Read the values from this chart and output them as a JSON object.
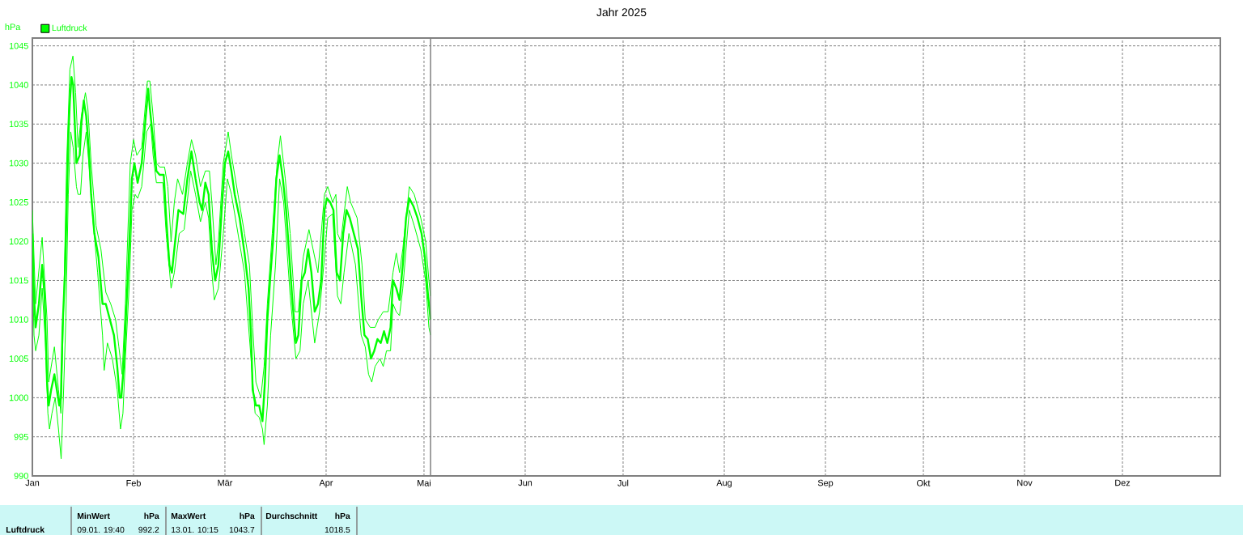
{
  "chart_data": {
    "type": "line",
    "title": "Jahr 2025",
    "ylabel": "hPa",
    "xlim": [
      "2025-01-01",
      "2025-12-31"
    ],
    "ylim": [
      990,
      1046
    ],
    "xticks": [
      {
        "value": "2025-01-01",
        "label": "Jan"
      },
      {
        "value": "2025-02-01",
        "label": "Feb"
      },
      {
        "value": "2025-03-01",
        "label": "Mär"
      },
      {
        "value": "2025-04-01",
        "label": "Apr"
      },
      {
        "value": "2025-05-01",
        "label": "Mai"
      },
      {
        "value": "2025-06-01",
        "label": "Jun"
      },
      {
        "value": "2025-07-01",
        "label": "Jul"
      },
      {
        "value": "2025-08-01",
        "label": "Aug"
      },
      {
        "value": "2025-09-01",
        "label": "Sep"
      },
      {
        "value": "2025-10-01",
        "label": "Okt"
      },
      {
        "value": "2025-11-01",
        "label": "Nov"
      },
      {
        "value": "2025-12-01",
        "label": "Dez"
      }
    ],
    "yticks": [
      990,
      995,
      1000,
      1005,
      1010,
      1015,
      1020,
      1025,
      1030,
      1035,
      1040,
      1045
    ],
    "grid": true,
    "legend": "top left",
    "ref_lines": [
      {
        "axis": "x",
        "value": "2025-05-03",
        "color": "#808080"
      }
    ],
    "annotations": [
      "Luftdruck",
      "MinWert",
      "hPa",
      "09.01. 19:40",
      "992.2",
      "MaxWert",
      "hPa",
      "13.01. 10:15",
      "1043.7",
      "Durchschnitt",
      "hPa",
      "1018.5"
    ],
    "series": [
      {
        "name": "Luftdruck",
        "color": "#00ff00",
        "x": [
          "2025-01-01",
          "2025-01-01T12:00",
          "2025-01-02",
          "2025-01-03",
          "2025-01-04",
          "2025-01-04T18:00",
          "2025-01-05T12:00",
          "2025-01-06",
          "2025-01-06T18:00",
          "2025-01-07T18:00",
          "2025-01-08T12:00",
          "2025-01-09T06:00",
          "2025-01-09T18:00",
          "2025-01-10T06:00",
          "2025-01-11",
          "2025-01-11T12:00",
          "2025-01-12",
          "2025-01-12T12:00",
          "2025-01-13",
          "2025-01-13T12:00",
          "2025-01-14",
          "2025-01-14T12:00",
          "2025-01-15T12:00",
          "2025-01-16",
          "2025-01-16T18:00",
          "2025-01-17T12:00",
          "2025-01-18T06:00",
          "2025-01-19",
          "2025-01-20",
          "2025-01-21T06:00",
          "2025-01-22T12:00",
          "2025-01-23T12:00",
          "2025-01-24T18:00",
          "2025-01-26",
          "2025-01-27",
          "2025-01-27T18:00",
          "2025-01-28T06:00",
          "2025-01-29",
          "2025-01-29T18:00",
          "2025-01-30T18:00",
          "2025-01-31T12:00",
          "2025-02-01T06:00",
          "2025-02-02T06:00",
          "2025-02-03T12:00",
          "2025-02-04T18:00",
          "2025-02-05T12:00",
          "2025-02-06",
          "2025-02-07",
          "2025-02-08",
          "2025-02-09",
          "2025-02-10T06:00",
          "2025-02-11",
          "2025-02-12",
          "2025-02-12T18:00",
          "2025-02-13T18:00",
          "2025-02-14T18:00",
          "2025-02-16T06:00",
          "2025-02-17T12:00",
          "2025-02-18T18:00",
          "2025-02-20",
          "2025-02-21T06:00",
          "2025-02-22",
          "2025-02-23",
          "2025-02-24",
          "2025-02-25",
          "2025-02-26",
          "2025-02-27",
          "2025-02-28",
          "2025-03-01",
          "2025-03-02",
          "2025-03-03",
          "2025-03-04",
          "2025-03-05T12:00",
          "2025-03-07",
          "2025-03-08T06:00",
          "2025-03-09",
          "2025-03-09T12:00",
          "2025-03-10T12:00",
          "2025-03-11T12:00",
          "2025-03-12T12:00",
          "2025-03-13T06:00",
          "2025-03-14",
          "2025-03-15",
          "2025-03-15T18:00",
          "2025-03-16T18:00",
          "2025-03-17T18:00",
          "2025-03-18T18:00",
          "2025-03-19T18:00",
          "2025-03-20T18:00",
          "2025-03-21T18:00",
          "2025-03-22T18:00",
          "2025-03-23T12:00",
          "2025-03-24T12:00",
          "2025-03-25T12:00",
          "2025-03-26T12:00",
          "2025-03-27T12:00",
          "2025-03-28T12:00",
          "2025-03-29T12:00",
          "2025-03-30T12:00",
          "2025-03-31T12:00",
          "2025-04-01T06:00",
          "2025-04-02T06:00",
          "2025-04-03T06:00",
          "2025-04-04T06:00",
          "2025-04-05T06:00",
          "2025-04-06T06:00",
          "2025-04-07T06:00",
          "2025-04-08T06:00",
          "2025-04-09T12:00",
          "2025-04-10T18:00",
          "2025-04-11T18:00",
          "2025-04-12T18:00",
          "2025-04-13T18:00",
          "2025-04-14T18:00",
          "2025-04-15T18:00",
          "2025-04-16T18:00",
          "2025-04-17T18:00",
          "2025-04-18T18:00",
          "2025-04-19T18:00",
          "2025-04-20T18:00",
          "2025-04-21T12:00",
          "2025-04-22T12:00",
          "2025-04-23T12:00",
          "2025-04-24T12:00",
          "2025-04-25T12:00",
          "2025-04-26T12:00",
          "2025-04-27T18:00",
          "2025-04-29",
          "2025-04-30T06:00",
          "2025-05-01T06:00",
          "2025-05-02T06:00",
          "2025-05-03"
        ],
        "values": [
          1021,
          1013,
          1009,
          1012,
          1017,
          1013,
          1002,
          999,
          1001,
          1003,
          1001,
          999,
          1000,
          1009,
          1016,
          1024,
          1033,
          1038,
          1041,
          1040,
          1035,
          1030,
          1031,
          1035,
          1038,
          1036,
          1032,
          1026,
          1021,
          1018,
          1012,
          1012,
          1010,
          1008,
          1004,
          1000,
          1000,
          1004,
          1011,
          1020,
          1028,
          1030,
          1027.5,
          1030,
          1036,
          1039.5,
          1037,
          1033,
          1029,
          1028.5,
          1028.5,
          1023,
          1017,
          1016,
          1020,
          1024,
          1023.5,
          1028,
          1031.5,
          1028,
          1025,
          1024,
          1027.5,
          1026,
          1019,
          1015,
          1017,
          1024,
          1030,
          1031.5,
          1029,
          1026,
          1023,
          1018.5,
          1014,
          1008,
          1001,
          999,
          999,
          997,
          1002,
          1010,
          1016,
          1020,
          1028,
          1031,
          1028,
          1024,
          1018,
          1012,
          1007,
          1008,
          1015,
          1016,
          1019,
          1016,
          1011,
          1012,
          1015,
          1024,
          1025.5,
          1025,
          1024,
          1016,
          1015,
          1021,
          1024,
          1023,
          1021,
          1019,
          1013,
          1008,
          1007.5,
          1005,
          1006,
          1007.5,
          1007,
          1008.5,
          1007,
          1009,
          1015,
          1014,
          1012.5,
          1017,
          1023,
          1025.5,
          1024.5,
          1023,
          1021,
          1018,
          1013,
          1010
        ]
      },
      {
        "color": "#00ff00",
        "x": [
          "2025-01-01",
          "2025-01-02",
          "2025-01-04",
          "2025-01-05T12:00",
          "2025-01-06",
          "2025-01-07T18:00",
          "2025-01-09",
          "2025-01-09T18:00",
          "2025-01-10T12:00",
          "2025-01-11T12:00",
          "2025-01-12T12:00",
          "2025-01-13T10:15",
          "2025-01-14T06:00",
          "2025-01-15",
          "2025-01-16",
          "2025-01-17T06:00",
          "2025-01-18",
          "2025-01-19",
          "2025-01-20T12:00",
          "2025-01-22",
          "2025-01-23T12:00",
          "2025-01-25",
          "2025-01-26T12:00",
          "2025-01-27T12:00",
          "2025-01-28T12:00",
          "2025-01-29T12:00",
          "2025-01-31",
          "2025-02-01",
          "2025-02-02",
          "2025-02-03T12:00",
          "2025-02-05T06:00",
          "2025-02-06",
          "2025-02-07",
          "2025-02-08",
          "2025-02-09",
          "2025-02-10T12:00",
          "2025-02-11T12:00",
          "2025-02-12T12:00",
          "2025-02-13T12:00",
          "2025-02-14T12:00",
          "2025-02-16",
          "2025-02-17T12:00",
          "2025-02-18T18:00",
          "2025-02-20",
          "2025-02-21T12:00",
          "2025-02-23",
          "2025-02-24T06:00",
          "2025-02-25",
          "2025-02-26T06:00",
          "2025-02-27",
          "2025-02-28T12:00",
          "2025-03-02",
          "2025-03-03",
          "2025-03-05",
          "2025-03-07",
          "2025-03-08T12:00",
          "2025-03-09T12:00",
          "2025-03-10T12:00",
          "2025-03-12",
          "2025-03-13",
          "2025-03-14",
          "2025-03-15T12:00",
          "2025-03-17",
          "2025-03-18",
          "2025-03-19T12:00",
          "2025-03-21",
          "2025-03-22T12:00",
          "2025-03-23T12:00",
          "2025-03-25",
          "2025-03-26T18:00",
          "2025-03-28",
          "2025-03-29T12:00",
          "2025-03-31T12:00",
          "2025-04-01T12:00",
          "2025-04-03",
          "2025-04-04",
          "2025-04-04T12:00",
          "2025-04-05T12:00",
          "2025-04-07T12:00",
          "2025-04-08T12:00",
          "2025-04-10T12:00",
          "2025-04-12",
          "2025-04-13",
          "2025-04-14T12:00",
          "2025-04-16",
          "2025-04-17",
          "2025-04-18T12:00",
          "2025-04-20",
          "2025-04-21T12:00",
          "2025-04-22T12:00",
          "2025-04-23T12:00",
          "2025-04-24T12:00",
          "2025-04-26T12:00",
          "2025-04-28",
          "2025-04-30",
          "2025-05-01T12:00",
          "2025-05-02T12:00",
          "2025-05-03"
        ],
        "values": [
          1024,
          1012,
          1020.5,
          1010,
          1002,
          1006.5,
          1001,
          998,
          1010,
          1030,
          1042,
          1043.7,
          1039,
          1032,
          1036,
          1039,
          1037,
          1030,
          1022,
          1019,
          1013.5,
          1012,
          1010,
          1006.5,
          1003,
          1012,
          1030,
          1033,
          1031,
          1032,
          1040.5,
          1040.5,
          1036,
          1030,
          1029.5,
          1029.5,
          1027,
          1020,
          1025,
          1028,
          1026,
          1030,
          1033,
          1031,
          1027,
          1029,
          1029,
          1025,
          1017,
          1020,
          1030,
          1034,
          1031,
          1026,
          1021,
          1017,
          1009,
          1002,
          1000,
          1004,
          1012,
          1021,
          1030,
          1033.5,
          1028,
          1021,
          1011,
          1011,
          1018,
          1021.5,
          1019,
          1016,
          1026,
          1027,
          1025,
          1026,
          1021,
          1020,
          1027,
          1025,
          1023,
          1017,
          1010,
          1009,
          1009,
          1010,
          1011,
          1011,
          1016,
          1018.5,
          1016,
          1019,
          1027,
          1026,
          1023,
          1020,
          1015,
          1013
        ]
      },
      {
        "color": "#00ff00",
        "x": [
          "2025-01-01",
          "2025-01-01T12:00",
          "2025-01-02",
          "2025-01-03",
          "2025-01-04",
          "2025-01-05",
          "2025-01-05T18:00",
          "2025-01-06T06:00",
          "2025-01-07",
          "2025-01-08",
          "2025-01-09",
          "2025-01-09T19:40",
          "2025-01-10T12:00",
          "2025-01-11T06:00",
          "2025-01-12",
          "2025-01-12T18:00",
          "2025-01-13T12:00",
          "2025-01-14T12:00",
          "2025-01-15",
          "2025-01-15T18:00",
          "2025-01-16T12:00",
          "2025-01-17T12:00",
          "2025-01-18T12:00",
          "2025-01-19T12:00",
          "2025-01-21",
          "2025-01-22T12:00",
          "2025-01-23",
          "2025-01-24",
          "2025-01-25T12:00",
          "2025-01-27",
          "2025-01-28",
          "2025-01-28T18:00",
          "2025-01-29T12:00",
          "2025-01-30T18:00",
          "2025-01-31T12:00",
          "2025-02-01T12:00",
          "2025-02-02T06:00",
          "2025-02-03T12:00",
          "2025-02-05",
          "2025-02-06T06:00",
          "2025-02-07",
          "2025-02-08",
          "2025-02-10",
          "2025-02-11",
          "2025-02-12T12:00",
          "2025-02-13T12:00",
          "2025-02-15",
          "2025-02-16T12:00",
          "2025-02-18T12:00",
          "2025-02-20",
          "2025-02-21T12:00",
          "2025-02-23",
          "2025-02-24",
          "2025-02-25",
          "2025-02-25T18:00",
          "2025-02-27",
          "2025-02-28T12:00",
          "2025-03-01T18:00",
          "2025-03-03",
          "2025-03-05",
          "2025-03-07",
          "2025-03-09",
          "2025-03-10T06:00",
          "2025-03-11T12:00",
          "2025-03-12T12:00",
          "2025-03-13",
          "2025-03-14",
          "2025-03-15",
          "2025-03-16T12:00",
          "2025-03-17T18:00",
          "2025-03-19",
          "2025-03-21",
          "2025-03-22T18:00",
          "2025-03-24",
          "2025-03-25",
          "2025-03-26T12:00",
          "2025-03-28T12:00",
          "2025-03-30",
          "2025-03-31T12:00",
          "2025-04-01T12:00",
          "2025-04-03",
          "2025-04-04T12:00",
          "2025-04-05T12:00",
          "2025-04-06T12:00",
          "2025-04-08",
          "2025-04-10",
          "2025-04-11T18:00",
          "2025-04-13",
          "2025-04-14",
          "2025-04-15",
          "2025-04-16",
          "2025-04-17T12:00",
          "2025-04-18T12:00",
          "2025-04-19T12:00",
          "2025-04-20T18:00",
          "2025-04-21T12:00",
          "2025-04-22T12:00",
          "2025-04-23T12:00",
          "2025-04-24T12:00",
          "2025-04-26T12:00",
          "2025-04-28",
          "2025-04-30",
          "2025-05-01T12:00",
          "2025-05-02T12:00",
          "2025-05-03"
        ],
        "values": [
          1018,
          1008,
          1006,
          1008,
          1014,
          1007,
          998,
          996,
          998,
          1000,
          996,
          992.2,
          1000,
          1010,
          1026,
          1034,
          1032,
          1027,
          1026,
          1026,
          1031,
          1034,
          1029,
          1023,
          1016,
          1008,
          1003.5,
          1007,
          1005,
          1001,
          996,
          998,
          1005,
          1015,
          1024,
          1026,
          1025.5,
          1027,
          1034,
          1035,
          1031,
          1027.5,
          1027.5,
          1021,
          1014,
          1016,
          1021,
          1021.5,
          1029,
          1026,
          1022.5,
          1025,
          1023,
          1016,
          1012.5,
          1014,
          1021,
          1028,
          1026,
          1021,
          1016,
          1005,
          998,
          997.5,
          996,
          994,
          999,
          1008,
          1017,
          1028,
          1025,
          1013,
          1005,
          1006,
          1012,
          1015,
          1007,
          1011,
          1018,
          1023,
          1023.5,
          1013,
          1012,
          1016,
          1021,
          1017,
          1008,
          1006.5,
          1003,
          1002,
          1004,
          1005,
          1004,
          1006,
          1006,
          1012,
          1011,
          1010.5,
          1014,
          1024,
          1022,
          1019,
          1015,
          1009,
          1008
        ]
      }
    ]
  }
}
